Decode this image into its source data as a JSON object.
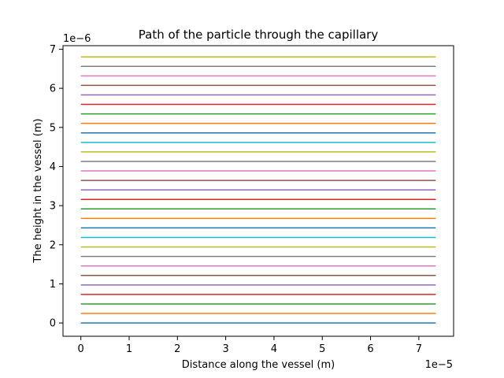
{
  "chart_data": {
    "type": "line",
    "title": "Path of the particle through the capillary",
    "xlabel": "Distance along the vessel (m)",
    "ylabel": "The height in the vessel (m)",
    "x_offset_label": "1e−5",
    "y_offset_label": "1e−6",
    "x_tick_labels": [
      "0",
      "1",
      "2",
      "3",
      "4",
      "5",
      "6",
      "7"
    ],
    "y_tick_labels": [
      "0",
      "1",
      "2",
      "3",
      "4",
      "5",
      "6",
      "7"
    ],
    "xlim": [
      -0.37,
      7.72
    ],
    "ylim": [
      -0.34,
      7.09
    ],
    "x": [
      0,
      7.35
    ],
    "grid": false,
    "legend": "none",
    "series_colors": [
      "#1f77b4",
      "#ff7f0e",
      "#2ca02c",
      "#d62728",
      "#9467bd",
      "#8c564b",
      "#e377c2",
      "#7f7f7f",
      "#bcbd22",
      "#17becf"
    ],
    "series": [
      {
        "values": [
          0.0,
          0.0
        ]
      },
      {
        "values": [
          0.243,
          0.243
        ]
      },
      {
        "values": [
          0.486,
          0.486
        ]
      },
      {
        "values": [
          0.729,
          0.729
        ]
      },
      {
        "values": [
          0.972,
          0.972
        ]
      },
      {
        "values": [
          1.215,
          1.215
        ]
      },
      {
        "values": [
          1.458,
          1.458
        ]
      },
      {
        "values": [
          1.701,
          1.701
        ]
      },
      {
        "values": [
          1.944,
          1.944
        ]
      },
      {
        "values": [
          2.187,
          2.187
        ]
      },
      {
        "values": [
          2.43,
          2.43
        ]
      },
      {
        "values": [
          2.673,
          2.673
        ]
      },
      {
        "values": [
          2.916,
          2.916
        ]
      },
      {
        "values": [
          3.159,
          3.159
        ]
      },
      {
        "values": [
          3.402,
          3.402
        ]
      },
      {
        "values": [
          3.645,
          3.645
        ]
      },
      {
        "values": [
          3.888,
          3.888
        ]
      },
      {
        "values": [
          4.131,
          4.131
        ]
      },
      {
        "values": [
          4.374,
          4.374
        ]
      },
      {
        "values": [
          4.617,
          4.617
        ]
      },
      {
        "values": [
          4.86,
          4.86
        ]
      },
      {
        "values": [
          5.103,
          5.103
        ]
      },
      {
        "values": [
          5.346,
          5.346
        ]
      },
      {
        "values": [
          5.589,
          5.589
        ]
      },
      {
        "values": [
          5.832,
          5.832
        ]
      },
      {
        "values": [
          6.075,
          6.075
        ]
      },
      {
        "values": [
          6.318,
          6.318
        ]
      },
      {
        "values": [
          6.561,
          6.561
        ]
      },
      {
        "values": [
          6.804,
          6.804
        ]
      }
    ]
  }
}
